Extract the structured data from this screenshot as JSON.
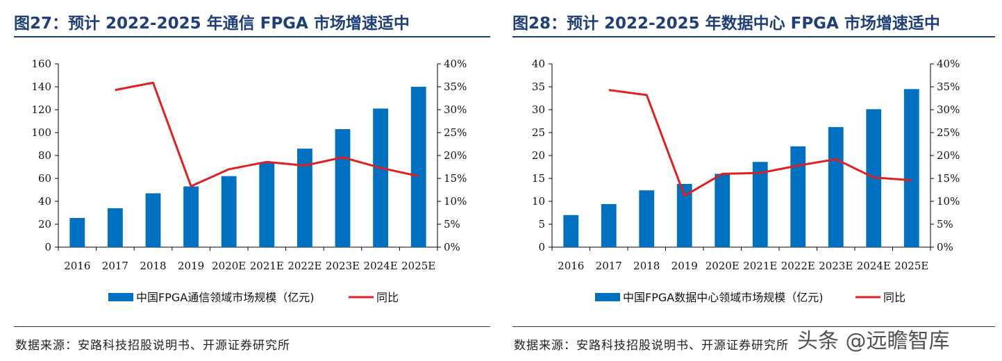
{
  "colors": {
    "bar": "#0070c0",
    "line": "#e02020",
    "title": "#1f3f7a"
  },
  "charts": [
    {
      "title": "图27：预计 2022-2025 年通信 FPGA 市场增速适中",
      "source": "数据来源：安路科技招股说明书、开源证券研究所",
      "chart_data": {
        "type": "bar",
        "categories": [
          "2016",
          "2017",
          "2018",
          "2019",
          "2020E",
          "2021E",
          "2022E",
          "2023E",
          "2024E",
          "2025E"
        ],
        "series": [
          {
            "name": "中国FPGA通信领域市场规模（亿元)",
            "type": "bar",
            "axis": "left",
            "values": [
              25.5,
              34,
              47,
              53,
              62,
              74,
              86,
              103,
              121,
              140
            ]
          },
          {
            "name": "同比",
            "type": "line",
            "axis": "right",
            "values": [
              null,
              34.3,
              35.9,
              13.3,
              17.0,
              18.6,
              17.8,
              19.6,
              17.3,
              15.5
            ]
          }
        ],
        "ylim": [
          0,
          160
        ],
        "yticks": [
          "0",
          "20",
          "40",
          "60",
          "80",
          "100",
          "120",
          "140",
          "160"
        ],
        "y2lim": [
          0,
          40
        ],
        "y2ticks": [
          "0%",
          "5%",
          "10%",
          "15%",
          "20%",
          "25%",
          "30%",
          "35%",
          "40%"
        ],
        "legend": "bottom"
      }
    },
    {
      "title": "图28：预计 2022-2025 年数据中心 FPGA 市场增速适中",
      "source": "数据来源：安路科技招股说明书、开源证券研究所",
      "chart_data": {
        "type": "bar",
        "categories": [
          "2016",
          "2017",
          "2018",
          "2019",
          "2020E",
          "2021E",
          "2022E",
          "2023E",
          "2024E",
          "2025E"
        ],
        "series": [
          {
            "name": "中国FPGA数据中心领域市场规模（亿元)",
            "type": "bar",
            "axis": "left",
            "values": [
              7.0,
              9.4,
              12.4,
              13.8,
              16.0,
              18.6,
              22.0,
              26.2,
              30.1,
              34.5
            ]
          },
          {
            "name": "同比",
            "type": "line",
            "axis": "right",
            "values": [
              null,
              34.3,
              33.2,
              11.2,
              16.0,
              16.2,
              17.8,
              19.2,
              15.2,
              14.6
            ]
          }
        ],
        "ylim": [
          0,
          40
        ],
        "yticks": [
          "0",
          "5",
          "10",
          "15",
          "20",
          "25",
          "30",
          "35",
          "40"
        ],
        "y2lim": [
          0,
          40
        ],
        "y2ticks": [
          "0%",
          "5%",
          "10%",
          "15%",
          "20%",
          "25%",
          "30%",
          "35%",
          "40%"
        ],
        "legend": "bottom"
      }
    }
  ],
  "watermark": "头条 @远瞻智库"
}
